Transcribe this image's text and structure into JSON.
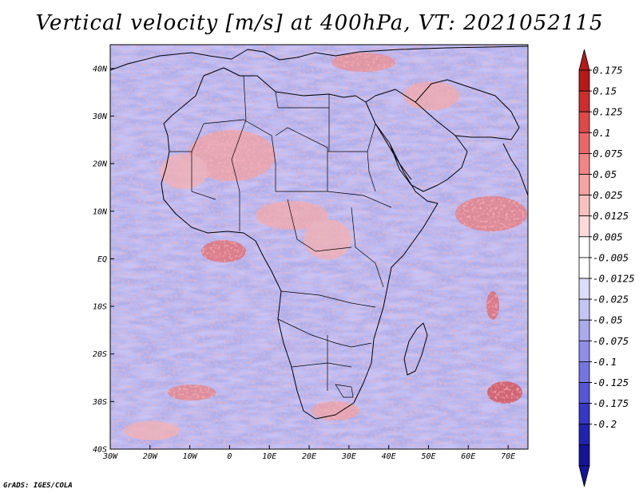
{
  "title": "Vertical velocity [m/s] at 400hPa, VT: 2021052115",
  "credit": "GrADS: IGES/COLA",
  "map": {
    "variable": "Vertical velocity",
    "units": "m/s",
    "level": "400hPa",
    "valid_time": "2021052115",
    "lon_range": [
      -30,
      75
    ],
    "lat_range": [
      -40,
      45
    ],
    "lon_ticks": [
      {
        "value": -30,
        "label": "30W"
      },
      {
        "value": -20,
        "label": "20W"
      },
      {
        "value": -10,
        "label": "10W"
      },
      {
        "value": 0,
        "label": "0"
      },
      {
        "value": 10,
        "label": "10E"
      },
      {
        "value": 20,
        "label": "20E"
      },
      {
        "value": 30,
        "label": "30E"
      },
      {
        "value": 40,
        "label": "40E"
      },
      {
        "value": 50,
        "label": "50E"
      },
      {
        "value": 60,
        "label": "60E"
      },
      {
        "value": 70,
        "label": "70E"
      }
    ],
    "lat_ticks": [
      {
        "value": 40,
        "label": "40N"
      },
      {
        "value": 30,
        "label": "30N"
      },
      {
        "value": 20,
        "label": "20N"
      },
      {
        "value": 10,
        "label": "10N"
      },
      {
        "value": 0,
        "label": "EQ"
      },
      {
        "value": -10,
        "label": "10S"
      },
      {
        "value": -20,
        "label": "20S"
      },
      {
        "value": -30,
        "label": "30S"
      },
      {
        "value": -40,
        "label": "40S"
      }
    ]
  },
  "colorbar": {
    "labels": [
      "0.175",
      "0.15",
      "0.125",
      "0.1",
      "0.075",
      "0.05",
      "0.025",
      "0.0125",
      "0.005",
      "-0.005",
      "-0.0125",
      "-0.025",
      "-0.05",
      "-0.075",
      "-0.1",
      "-0.125",
      "-0.175",
      "-0.2"
    ],
    "colors": [
      "#b41a1a",
      "#cd2d2d",
      "#e04848",
      "#ec6666",
      "#f38484",
      "#f7a2a2",
      "#fac0c0",
      "#fcdada",
      "#ffffff",
      "#ffffff",
      "#dcdcfb",
      "#c4c4f6",
      "#aaaaf0",
      "#8f8fea",
      "#7474e2",
      "#5656d8",
      "#3636c8",
      "#2222b0",
      "#14149a"
    ],
    "top_color": "#b41a1a",
    "bottom_color": "#14149a"
  }
}
